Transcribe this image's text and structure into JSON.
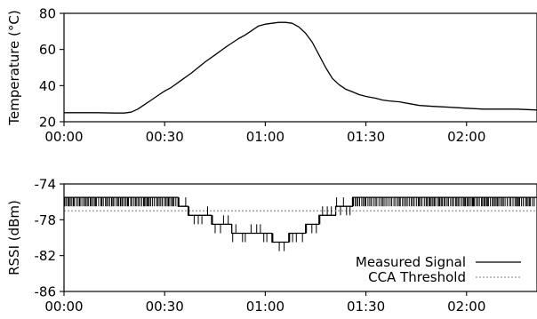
{
  "chart_data": [
    {
      "type": "line",
      "ylabel": "Temperature (°C)",
      "xlabel": "",
      "ylim": [
        20,
        80
      ],
      "xlim_minutes": [
        0,
        141
      ],
      "yticks": [
        "20",
        "40",
        "60",
        "80"
      ],
      "xticks": [
        "00:00",
        "00:30",
        "01:00",
        "01:30",
        "02:00"
      ],
      "grid": false,
      "series": [
        {
          "x_minutes": [
            0,
            5,
            10,
            15,
            18,
            20,
            22,
            24,
            26,
            28,
            30,
            32,
            35,
            38,
            40,
            42,
            45,
            48,
            50,
            52,
            54,
            56,
            58,
            60,
            62,
            64,
            66,
            68,
            70,
            72,
            74,
            76,
            78,
            80,
            82,
            84,
            86,
            88,
            90,
            93,
            95,
            97,
            100,
            103,
            106,
            110,
            115,
            120,
            125,
            130,
            135,
            141
          ],
          "y": [
            25,
            25,
            25,
            24.8,
            24.8,
            25.3,
            27,
            29.5,
            32,
            34.5,
            37,
            39,
            43,
            47,
            50,
            53,
            57,
            61,
            63.5,
            66,
            68,
            70.5,
            73,
            74,
            74.5,
            75,
            75,
            74.5,
            72.5,
            69,
            64,
            57,
            50,
            44,
            40.5,
            38,
            36.5,
            35,
            34,
            33,
            32,
            31.5,
            31,
            30,
            29,
            28.5,
            28,
            27.5,
            27,
            27,
            27,
            26.5
          ]
        }
      ],
      "color": "#000000"
    },
    {
      "type": "line",
      "ylabel": "RSSI (dBm)",
      "xlabel": "",
      "ylim": [
        -86,
        -74
      ],
      "xlim_minutes": [
        0,
        141
      ],
      "yticks": [
        "-74",
        "-78",
        "-82",
        "-86"
      ],
      "xticks": [
        "00:00",
        "00:30",
        "01:00",
        "01:30",
        "02:00"
      ],
      "grid": false,
      "legend_position": "bottom-right",
      "series": [
        {
          "name": "Measured Signal",
          "style": "solid",
          "color": "#000000",
          "x_minutes": [
            0,
            34,
            34,
            37,
            37,
            44,
            44,
            50,
            50,
            62,
            62,
            67,
            67,
            72,
            72,
            76,
            76,
            81,
            81,
            86,
            86,
            141
          ],
          "y": [
            -75.5,
            -75.5,
            -76.5,
            -76.5,
            -77.5,
            -77.5,
            -78.5,
            -78.5,
            -79.5,
            -79.5,
            -80.5,
            -80.5,
            -79.5,
            -79.5,
            -78.5,
            -78.5,
            -77.5,
            -77.5,
            -76.5,
            -76.5,
            -75.5,
            -75.5
          ]
        },
        {
          "name": "CCA Threshold",
          "style": "dotted",
          "color": "#aaaaaa",
          "x_minutes": [
            0,
            141
          ],
          "y": [
            -77,
            -77
          ]
        }
      ]
    }
  ]
}
